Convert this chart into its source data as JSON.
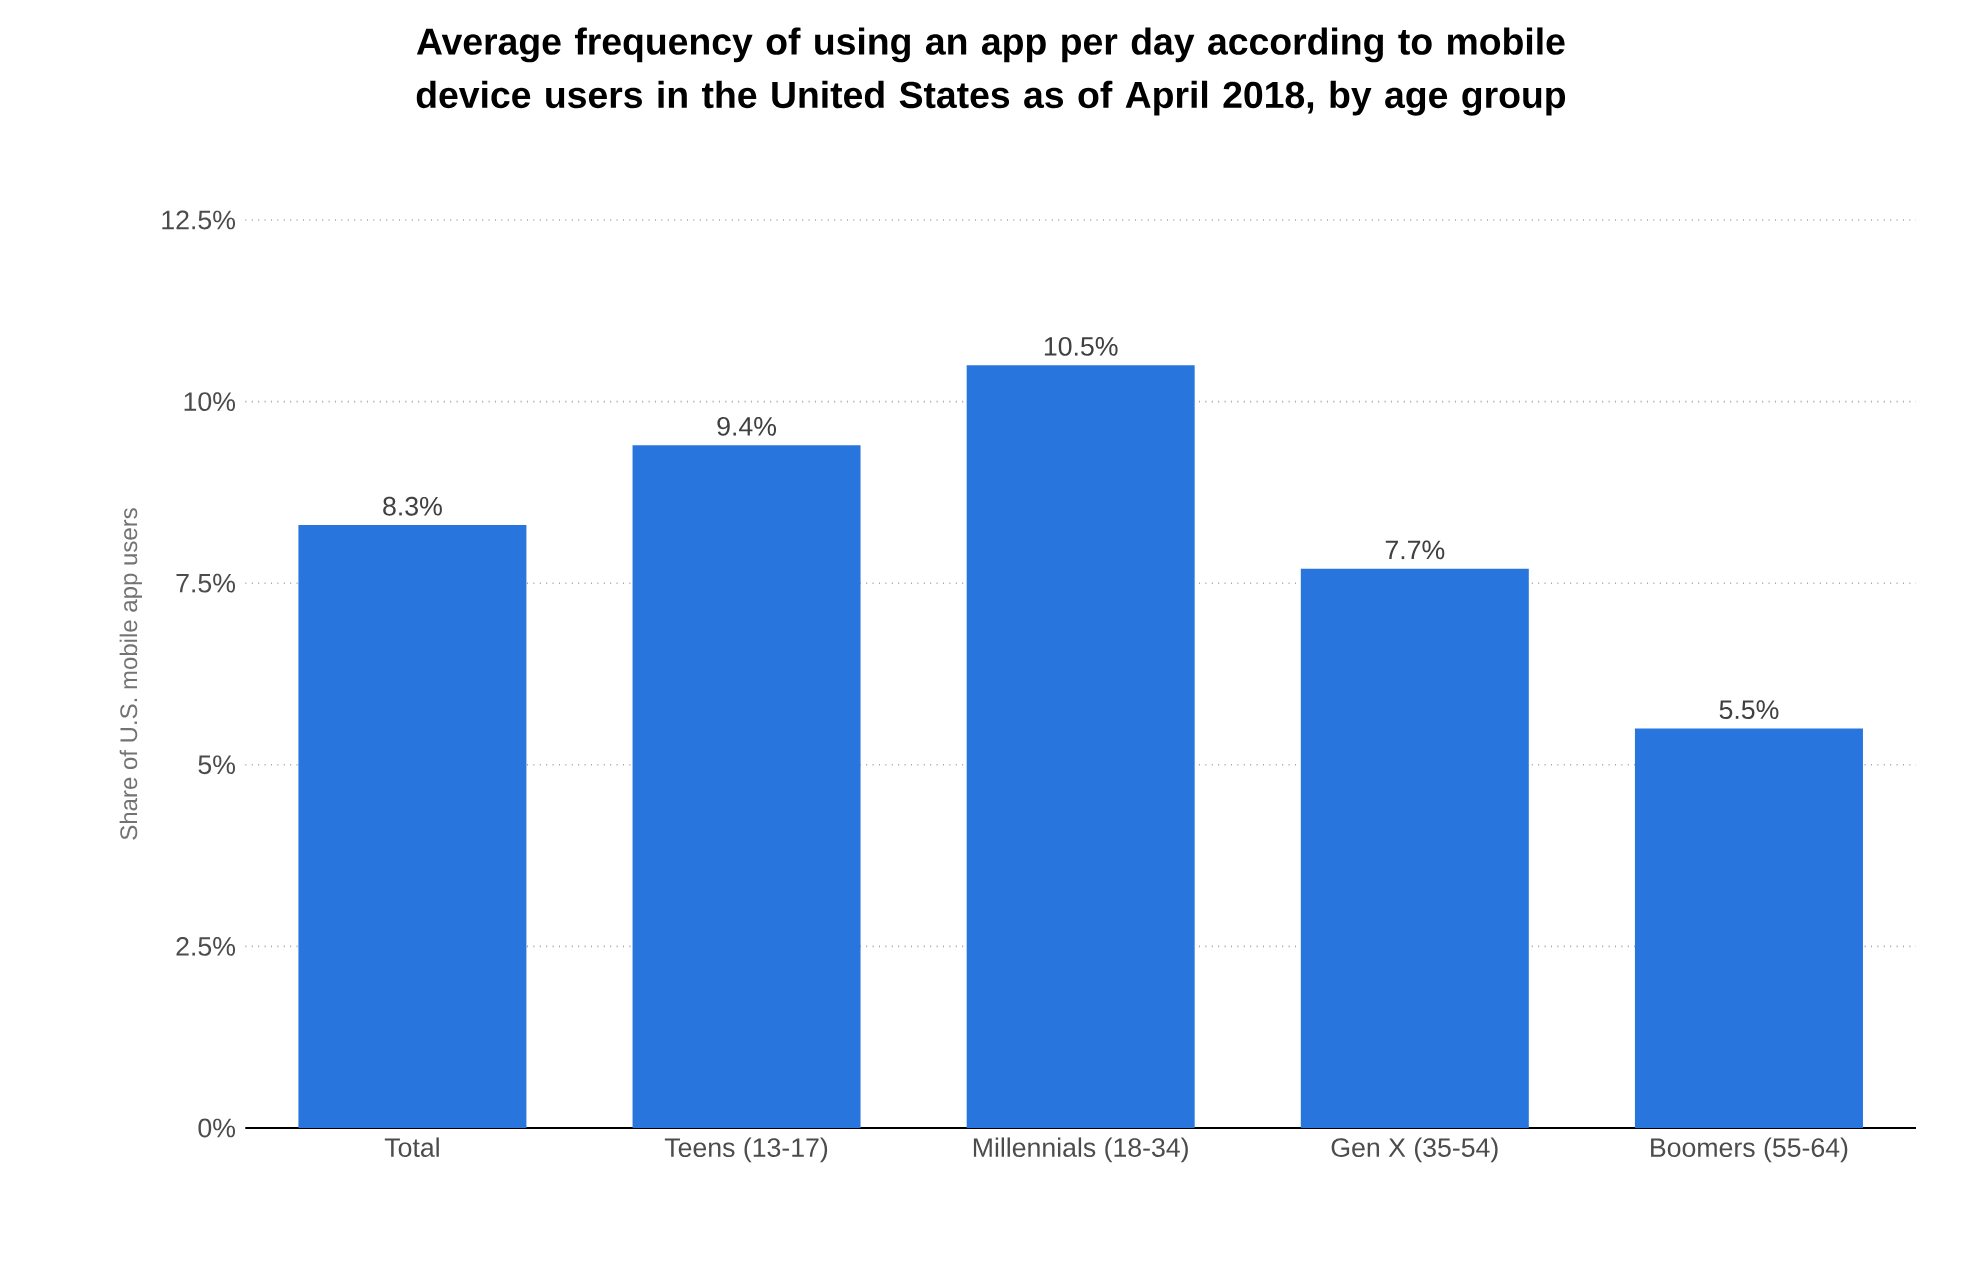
{
  "chart_data": {
    "type": "bar",
    "title": "Average frequency of using an app per day according to mobile device users in the United States as of April 2018, by age group",
    "ylabel": "Share of U.S. mobile app users",
    "categories": [
      "Total",
      "Teens (13-17)",
      "Millennials (18-34)",
      "Gen X (35-54)",
      "Boomers (55-64)"
    ],
    "values": [
      8.3,
      9.4,
      10.5,
      7.7,
      5.5
    ],
    "value_labels": [
      "8.3%",
      "9.4%",
      "10.5%",
      "7.7%",
      "5.5%"
    ],
    "color": "#2876dd",
    "ylim": [
      0,
      12.5
    ],
    "yticks": [
      {
        "value": 0,
        "label": "0%"
      },
      {
        "value": 2.5,
        "label": "2.5%"
      },
      {
        "value": 5,
        "label": "5%"
      },
      {
        "value": 7.5,
        "label": "7.5%"
      },
      {
        "value": 10,
        "label": "10%"
      },
      {
        "value": 12.5,
        "label": "12.5%"
      }
    ],
    "grid": "y"
  }
}
